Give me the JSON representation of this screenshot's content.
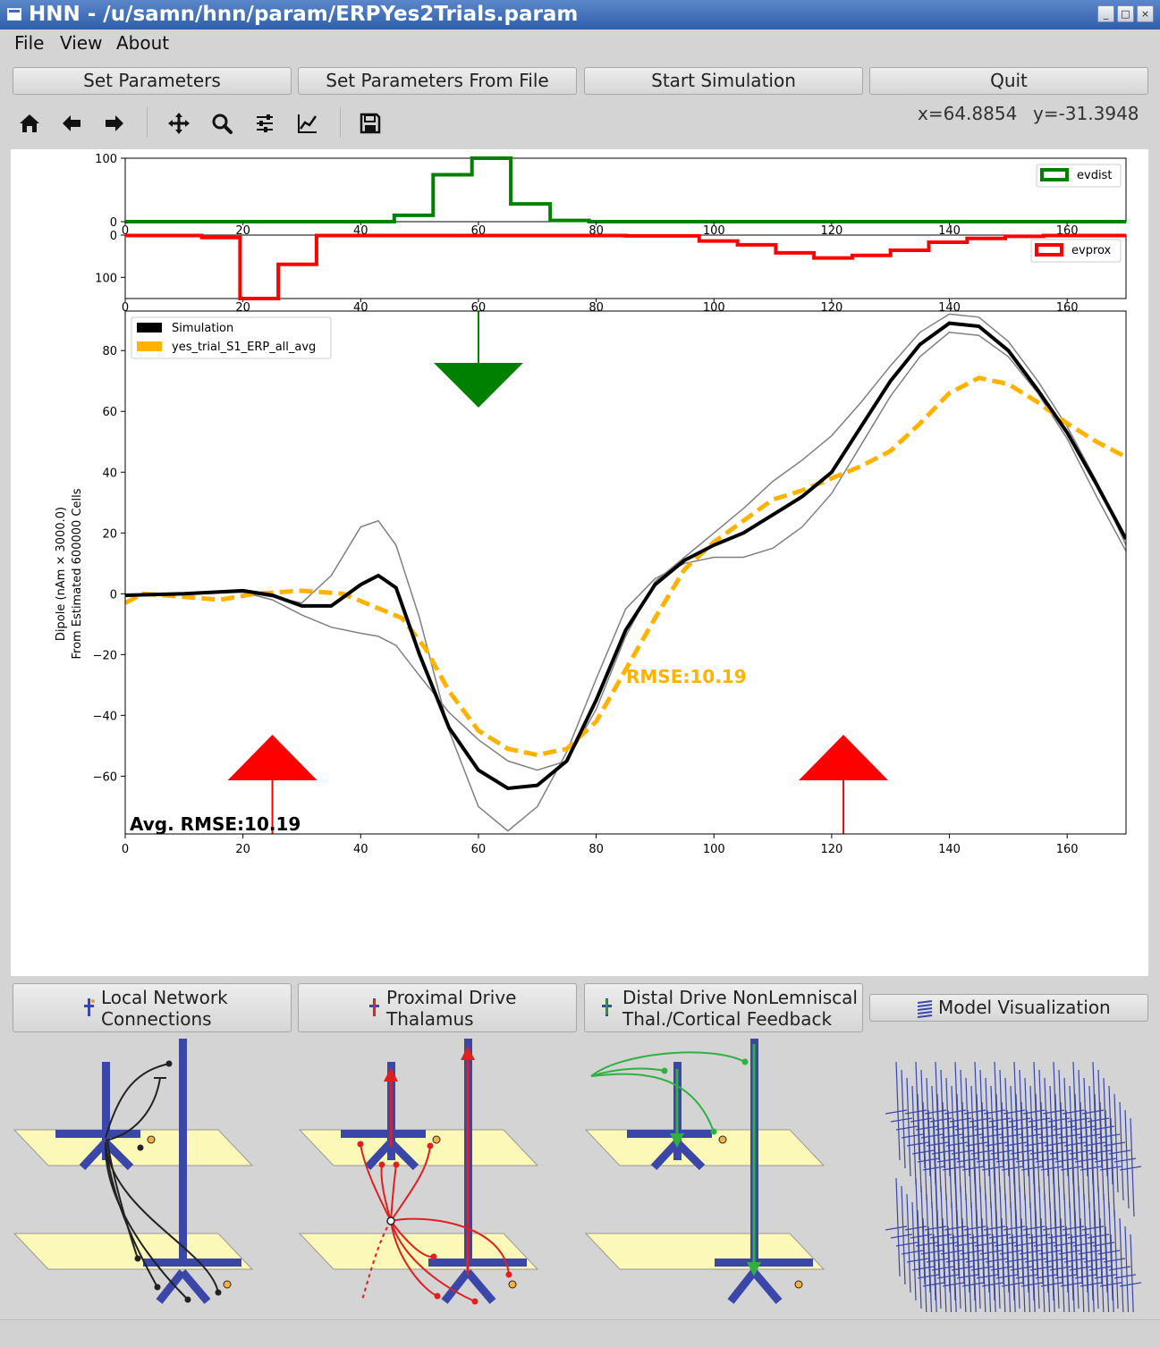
{
  "window": {
    "title": "HNN - /u/samn/hnn/param/ERPYes2Trials.param"
  },
  "menu": [
    "File",
    "View",
    "About"
  ],
  "top_buttons": [
    "Set Parameters",
    "Set Parameters From File",
    "Start Simulation",
    "Quit"
  ],
  "toolbar": {
    "icons": [
      "home-icon",
      "back-arrow-icon",
      "forward-arrow-icon",
      "pan-icon",
      "zoom-icon",
      "subplots-config-icon",
      "axes-edit-icon",
      "save-icon"
    ],
    "x_readout": "x=64.8854",
    "y_readout": "y=-31.3948"
  },
  "plot": {
    "avg_rmse_label": "Avg. RMSE:10.19",
    "rmse_label": "RMSE:10.19",
    "colors": {
      "sim": "#000000",
      "data": "#ffb300",
      "dist": "#008000",
      "prox": "#ff0000",
      "trial": "#808080"
    }
  },
  "chart_data": [
    {
      "type": "line",
      "title": "",
      "legend": [
        "evdist"
      ],
      "legend_placement": "top-right",
      "xlim": [
        0,
        170
      ],
      "ylim": [
        100,
        0
      ],
      "yticks": [
        0,
        100
      ],
      "xticks": [
        0,
        20,
        40,
        60,
        80,
        100,
        120,
        140,
        160
      ],
      "series": [
        {
          "name": "evdist",
          "x": [
            0,
            45.7,
            45.7,
            52.3,
            52.3,
            58.9,
            58.9,
            65.5,
            65.5,
            72.2,
            72.2,
            78.8,
            78.8,
            170
          ],
          "y": [
            0,
            0,
            10,
            10,
            74,
            74,
            100,
            100,
            28,
            28,
            2,
            2,
            0,
            0
          ]
        }
      ]
    },
    {
      "type": "line",
      "title": "",
      "legend": [
        "evprox"
      ],
      "legend_placement": "top-right",
      "xlim": [
        0,
        170
      ],
      "ylim": [
        0,
        150
      ],
      "yticks": [
        0,
        100
      ],
      "xticks": [
        0,
        20,
        40,
        60,
        80,
        100,
        120,
        140,
        160
      ],
      "series": [
        {
          "name": "evprox",
          "x": [
            0,
            13,
            13,
            19.5,
            19.5,
            26,
            26,
            32.5,
            32.5,
            85,
            85,
            97.5,
            97.5,
            104,
            104,
            110.5,
            110.5,
            117,
            117,
            123.5,
            123.5,
            130,
            130,
            136.5,
            136.5,
            143,
            143,
            149.5,
            149.5,
            156,
            156,
            170
          ],
          "y": [
            1,
            1,
            6,
            6,
            150,
            150,
            69,
            69,
            1,
            1,
            2,
            2,
            14,
            14,
            23,
            23,
            42,
            42,
            54,
            54,
            48,
            48,
            36,
            36,
            17,
            17,
            8,
            8,
            3,
            3,
            1,
            1
          ]
        }
      ]
    },
    {
      "type": "line",
      "title": "",
      "ylabel": "Dipole (nAm × 3000.0)\nFrom Estimated 600000 Cells",
      "xlim": [
        0,
        170
      ],
      "ylim": [
        -79,
        93
      ],
      "xticks": [
        0,
        20,
        40,
        60,
        80,
        100,
        120,
        140,
        160
      ],
      "yticks": [
        -60,
        -40,
        -20,
        0,
        20,
        40,
        60,
        80
      ],
      "legend": [
        "Simulation",
        "yes_trial_S1_ERP_all_avg"
      ],
      "legend_placement": "top-left",
      "grid": false,
      "series": [
        {
          "name": "Simulation",
          "x": [
            0,
            10,
            20,
            25,
            30,
            35,
            40,
            43,
            46,
            50,
            55,
            60,
            65,
            70,
            75,
            80,
            85,
            90,
            95,
            100,
            105,
            110,
            115,
            120,
            125,
            130,
            135,
            140,
            145,
            150,
            155,
            160,
            165,
            170
          ],
          "y": [
            -0.5,
            0,
            1,
            -0.5,
            -4,
            -4,
            3,
            6,
            2,
            -20,
            -44,
            -58,
            -64,
            -63,
            -55,
            -35,
            -12,
            3,
            11,
            16,
            20,
            26,
            32,
            40,
            55,
            70,
            82,
            89,
            88,
            80,
            67,
            53,
            36,
            18
          ]
        },
        {
          "name": "Simulation trial 1",
          "x": [
            0,
            10,
            20,
            25,
            30,
            35,
            40,
            43,
            46,
            50,
            55,
            60,
            65,
            70,
            75,
            80,
            85,
            90,
            95,
            100,
            105,
            110,
            115,
            120,
            125,
            130,
            135,
            140,
            145,
            150,
            155,
            160,
            165,
            170
          ],
          "y": [
            -0.5,
            0,
            0.5,
            -1,
            -3,
            6,
            22,
            24,
            16,
            -8,
            -45,
            -70,
            -78,
            -70,
            -52,
            -28,
            -5,
            5,
            10,
            12,
            12,
            15,
            22,
            33,
            49,
            65,
            78,
            86,
            85,
            78,
            66,
            51,
            32,
            14
          ]
        },
        {
          "name": "Simulation trial 2",
          "x": [
            0,
            10,
            20,
            25,
            30,
            35,
            40,
            43,
            46,
            50,
            55,
            60,
            65,
            70,
            75,
            80,
            85,
            90,
            95,
            100,
            105,
            110,
            115,
            120,
            125,
            130,
            135,
            140,
            145,
            150,
            155,
            160,
            165,
            170
          ],
          "y": [
            -0.5,
            0,
            0.5,
            -2,
            -7,
            -11,
            -13,
            -14,
            -17,
            -27,
            -39,
            -48,
            -55,
            -58,
            -55,
            -38,
            -14,
            4,
            12,
            20,
            28,
            37,
            44,
            52,
            63,
            75,
            86,
            92,
            91,
            83,
            70,
            55,
            37,
            16
          ]
        },
        {
          "name": "yes_trial_S1_ERP_all_avg",
          "x": [
            0,
            3,
            10,
            16,
            22,
            30,
            37,
            42,
            47,
            51,
            55,
            60,
            65,
            70,
            75,
            80,
            85,
            90,
            95,
            100,
            105,
            110,
            115,
            120,
            125,
            130,
            135,
            140,
            145,
            150,
            155,
            160,
            165,
            170
          ],
          "y": [
            -3,
            0,
            -1,
            -2,
            0,
            1,
            0,
            -4,
            -8,
            -18,
            -32,
            -45,
            -51,
            -53,
            -51,
            -42,
            -25,
            -8,
            8,
            17,
            24,
            31,
            34,
            38,
            42,
            47,
            56,
            66,
            71,
            69,
            63,
            56,
            50,
            45
          ]
        }
      ],
      "markers": [
        {
          "type": "evdist",
          "x": 60,
          "direction": "down"
        },
        {
          "type": "evprox",
          "x": 25,
          "direction": "up"
        },
        {
          "type": "evprox",
          "x": 122,
          "direction": "up"
        }
      ]
    }
  ],
  "bottom_buttons": [
    {
      "line1": "Local Network",
      "line2": "Connections"
    },
    {
      "line1": "Proximal Drive",
      "line2": "Thalamus"
    },
    {
      "line1": "Distal Drive NonLemniscal",
      "line2": "Thal./Cortical Feedback"
    }
  ],
  "model_vis_button": "Model Visualization"
}
